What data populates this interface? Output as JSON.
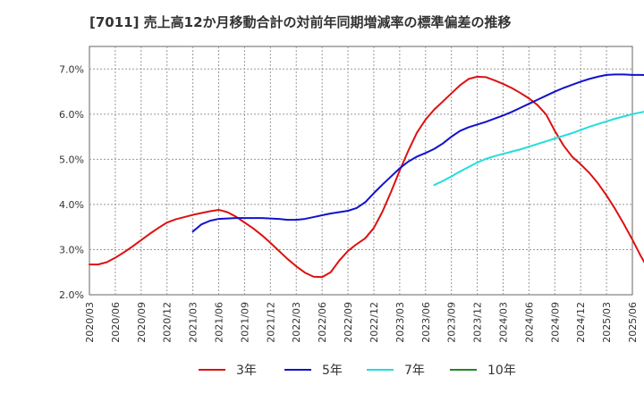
{
  "chart_data": {
    "type": "line",
    "title": "[7011]  売上高12か月移動合計の対前年同期増減率の標準偏差の推移",
    "xlabel": "",
    "ylabel": "",
    "ylim": [
      2.0,
      7.5
    ],
    "yticks": [
      "7.0%",
      "6.0%",
      "5.0%",
      "4.0%",
      "3.0%",
      "2.0%"
    ],
    "ytick_values": [
      7.0,
      6.0,
      5.0,
      4.0,
      3.0,
      2.0
    ],
    "x_tick_labels": [
      "2020/03",
      "2020/06",
      "2020/09",
      "2020/12",
      "2021/03",
      "2021/06",
      "2021/09",
      "2021/12",
      "2022/03",
      "2022/06",
      "2022/09",
      "2022/12",
      "2023/03",
      "2023/06",
      "2023/09",
      "2023/12",
      "2024/03",
      "2024/06",
      "2024/09",
      "2024/12",
      "2025/03",
      "2025/06"
    ],
    "grid": true,
    "legend_position": "bottom",
    "series": [
      {
        "name": "3年",
        "color": "#dd1111",
        "start_index": 0,
        "values": [
          2.67,
          2.67,
          2.72,
          2.82,
          2.94,
          3.07,
          3.21,
          3.35,
          3.48,
          3.6,
          3.67,
          3.72,
          3.77,
          3.81,
          3.85,
          3.88,
          3.83,
          3.73,
          3.6,
          3.47,
          3.32,
          3.15,
          2.97,
          2.79,
          2.63,
          2.49,
          2.4,
          2.39,
          2.5,
          2.76,
          2.97,
          3.12,
          3.25,
          3.48,
          3.84,
          4.28,
          4.75,
          5.19,
          5.59,
          5.88,
          6.1,
          6.28,
          6.46,
          6.64,
          6.78,
          6.83,
          6.82,
          6.75,
          6.67,
          6.58,
          6.47,
          6.35,
          6.2,
          5.99,
          5.63,
          5.31,
          5.06,
          4.89,
          4.7,
          4.47,
          4.2,
          3.9,
          3.57,
          3.22,
          2.85,
          2.52,
          2.3,
          2.17
        ]
      },
      {
        "name": "5年",
        "color": "#1111cc",
        "start_index": 12,
        "values": [
          3.4,
          3.56,
          3.64,
          3.68,
          3.69,
          3.7,
          3.7,
          3.7,
          3.7,
          3.69,
          3.68,
          3.66,
          3.66,
          3.68,
          3.72,
          3.76,
          3.8,
          3.83,
          3.86,
          3.92,
          4.05,
          4.25,
          4.44,
          4.62,
          4.8,
          4.95,
          5.06,
          5.14,
          5.23,
          5.35,
          5.5,
          5.63,
          5.71,
          5.77,
          5.83,
          5.9,
          5.97,
          6.05,
          6.14,
          6.23,
          6.32,
          6.41,
          6.5,
          6.58,
          6.65,
          6.72,
          6.78,
          6.83,
          6.87,
          6.88,
          6.88,
          6.87,
          6.87,
          6.86,
          6.86,
          6.85
        ]
      },
      {
        "name": "7年",
        "color": "#22dddd",
        "start_index": 40,
        "values": [
          4.43,
          4.52,
          4.62,
          4.73,
          4.83,
          4.93,
          5.01,
          5.07,
          5.12,
          5.17,
          5.22,
          5.28,
          5.34,
          5.4,
          5.46,
          5.52,
          5.58,
          5.65,
          5.72,
          5.78,
          5.84,
          5.9,
          5.95,
          6.0,
          6.04,
          6.08,
          6.11,
          6.13,
          6.15
        ]
      },
      {
        "name": "10年",
        "color": "#228822",
        "start_index": 0,
        "values": []
      }
    ]
  }
}
